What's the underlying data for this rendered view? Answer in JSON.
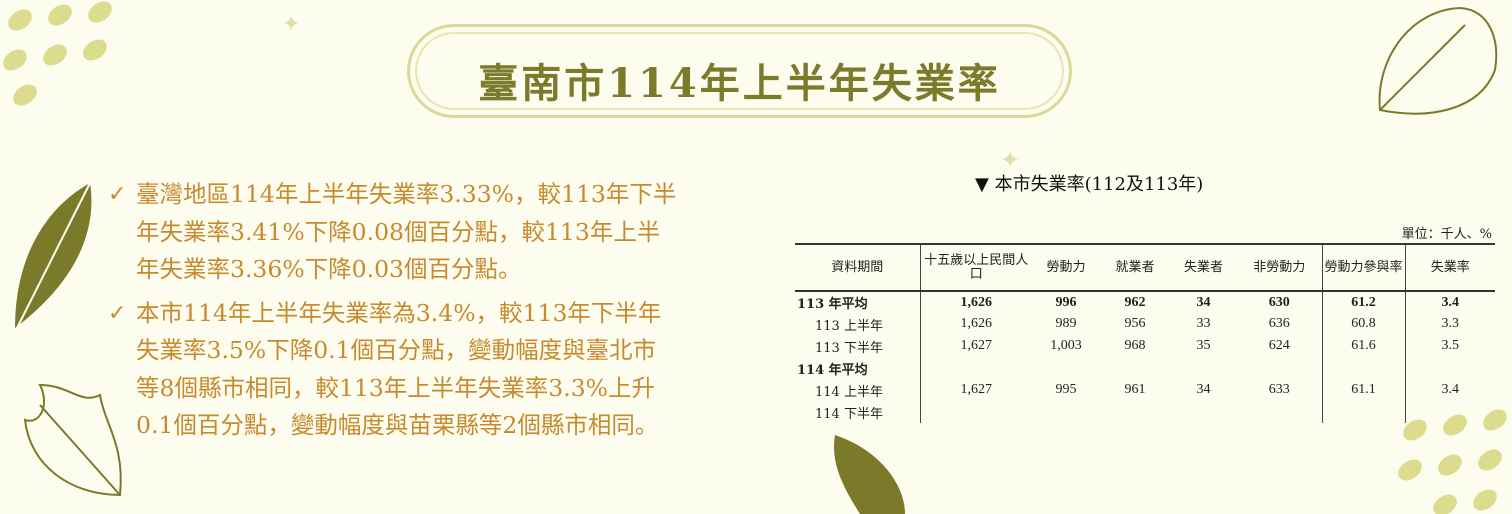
{
  "title": "臺南市114年上半年失業率",
  "bullets": [
    {
      "lines": [
        "臺灣地區114年上半年失業率3.33%，較113年下半",
        "年失業率3.41%下降0.08個百分點，較113年上半",
        "年失業率3.36%下降0.03個百分點。"
      ]
    },
    {
      "lines": [
        "本市114年上半年失業率為3.4%，較113年下半年",
        "失業率3.5%下降0.1個百分點，變動幅度與臺北市",
        "等8個縣市相同，較113年上半年失業率3.3%上升",
        "0.1個百分點，變動幅度與苗栗縣等2個縣市相同。"
      ]
    }
  ],
  "check_icon": "✓",
  "table": {
    "title": "▼ 本市失業率(112及113年)",
    "unit": "單位：千人、%",
    "headers": [
      "資料期間",
      "十五歲以上民間人口",
      "勞動力",
      "就業者",
      "失業者",
      "非勞動力",
      "勞動力參與率",
      "失業率"
    ],
    "rows": [
      {
        "label": "113 年平均",
        "bold": true,
        "cells": [
          "1,626",
          "996",
          "962",
          "34",
          "630",
          "61.2",
          "3.4"
        ]
      },
      {
        "label": "113 上半年",
        "cells": [
          "1,626",
          "989",
          "956",
          "33",
          "636",
          "60.8",
          "3.3"
        ]
      },
      {
        "label": "113 下半年",
        "cells": [
          "1,627",
          "1,003",
          "968",
          "35",
          "624",
          "61.6",
          "3.5"
        ]
      },
      {
        "label": "114 年平均",
        "bold": true,
        "cells": [
          "",
          "",
          "",
          "",
          "",
          "",
          ""
        ]
      },
      {
        "label": "114 上半年",
        "cells": [
          "1,627",
          "995",
          "961",
          "34",
          "633",
          "61.1",
          "3.4"
        ]
      },
      {
        "label": "114 下半年",
        "cells": [
          "",
          "",
          "",
          "",
          "",
          "",
          ""
        ]
      }
    ]
  },
  "colors": {
    "title": "#7c7a2b",
    "text": "#c88a2e",
    "leaf": "#7b7a2a",
    "dots": "#dcdc8f"
  }
}
